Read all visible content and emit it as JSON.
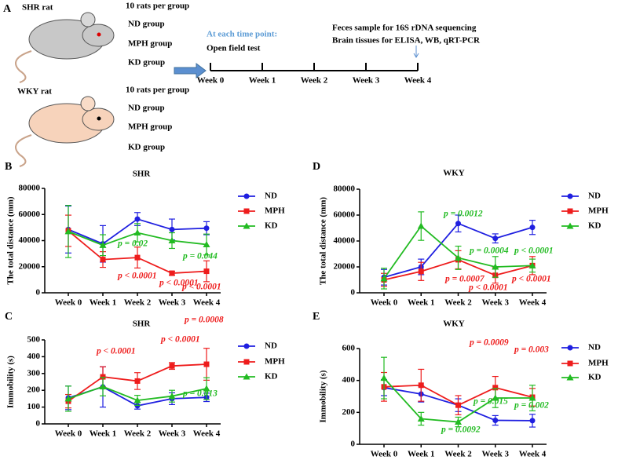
{
  "diagram": {
    "panel": "A",
    "groups": [
      {
        "rat": "SHR rat",
        "count": "10 rats per group",
        "items": [
          "ND group",
          "MPH group",
          "KD group"
        ]
      },
      {
        "rat": "WKY rat",
        "count": "10 rats per group",
        "items": [
          "ND group",
          "MPH group",
          "KD group"
        ]
      }
    ],
    "timepoint": "At each time point:",
    "test": "Open field test",
    "final": [
      "Feces sample for 16S rDNA sequencing",
      "Brain tissues for ELISA, WB, qRT-PCR"
    ],
    "weeks": [
      "Week 0",
      "Week 1",
      "Week 2",
      "Week 3",
      "Week 4"
    ]
  },
  "chart_data": [
    {
      "type": "line",
      "panel": "B",
      "title": "SHR",
      "ylabel": "The total distance (mm)",
      "categories": [
        "Week 0",
        "Week 1",
        "Week 2",
        "Week 3",
        "Week 4"
      ],
      "ylim": [
        0,
        80000
      ],
      "yticks": [
        0,
        20000,
        40000,
        60000,
        80000
      ],
      "series": [
        {
          "name": "ND",
          "color": "#1f1fe0",
          "marker": "circle",
          "values": [
            48500,
            37500,
            56500,
            48500,
            49500
          ],
          "errors": [
            18000,
            14000,
            5000,
            8000,
            5000
          ]
        },
        {
          "name": "MPH",
          "color": "#ee1c1c",
          "marker": "square",
          "values": [
            47500,
            25500,
            27000,
            15000,
            16500
          ],
          "errors": [
            12000,
            6000,
            8000,
            1500,
            8000
          ]
        },
        {
          "name": "KD",
          "color": "#22bb22",
          "marker": "triangle",
          "values": [
            47000,
            36500,
            46000,
            40000,
            37000
          ],
          "errors": [
            20000,
            8000,
            7000,
            6000,
            8000
          ]
        }
      ],
      "annotations": [
        {
          "text": "p = 0.02",
          "color": "#22bb22"
        },
        {
          "text": "p < 0.0001",
          "color": "#ee1c1c"
        },
        {
          "text": "p < 0.0001",
          "color": "#ee1c1c"
        },
        {
          "text": "p < 0.0001",
          "color": "#ee1c1c"
        },
        {
          "text": "p = 0.044",
          "color": "#22bb22"
        }
      ]
    },
    {
      "type": "line",
      "panel": "C",
      "title": "SHR",
      "ylabel": "Immobility (s)",
      "categories": [
        "Week 0",
        "Week 1",
        "Week 2",
        "Week 3",
        "Week 4"
      ],
      "ylim": [
        0,
        500
      ],
      "yticks": [
        0,
        100,
        200,
        300,
        400,
        500
      ],
      "series": [
        {
          "name": "ND",
          "color": "#1f1fe0",
          "marker": "circle",
          "values": [
            155,
            220,
            108,
            150,
            158
          ],
          "errors": [
            70,
            120,
            20,
            35,
            25
          ]
        },
        {
          "name": "MPH",
          "color": "#ee1c1c",
          "marker": "square",
          "values": [
            135,
            280,
            255,
            345,
            355
          ],
          "errors": [
            40,
            60,
            50,
            20,
            95
          ]
        },
        {
          "name": "KD",
          "color": "#22bb22",
          "marker": "triangle",
          "values": [
            150,
            222,
            140,
            165,
            210
          ],
          "errors": [
            75,
            55,
            30,
            35,
            65
          ]
        }
      ],
      "annotations": [
        {
          "text": "p < 0.0001",
          "color": "#ee1c1c"
        },
        {
          "text": "p < 0.0001",
          "color": "#ee1c1c"
        },
        {
          "text": "p = 0.0008",
          "color": "#ee1c1c"
        },
        {
          "text": "p = 0.013",
          "color": "#22bb22"
        }
      ]
    },
    {
      "type": "line",
      "panel": "D",
      "title": "WKY",
      "ylabel": "The total distance (mm)",
      "categories": [
        "Week 0",
        "Week 1",
        "Week 2",
        "Week 3",
        "Week 4"
      ],
      "ylim": [
        0,
        80000
      ],
      "yticks": [
        0,
        20000,
        40000,
        60000,
        80000
      ],
      "series": [
        {
          "name": "ND",
          "color": "#1f1fe0",
          "marker": "circle",
          "values": [
            12000,
            20000,
            53500,
            42000,
            50500
          ],
          "errors": [
            6000,
            6000,
            6500,
            3500,
            5500
          ]
        },
        {
          "name": "MPH",
          "color": "#ee1c1c",
          "marker": "square",
          "values": [
            10000,
            16500,
            25500,
            13500,
            21000
          ],
          "errors": [
            5000,
            7000,
            7000,
            6000,
            7000
          ]
        },
        {
          "name": "KD",
          "color": "#22bb22",
          "marker": "triangle",
          "values": [
            11000,
            51500,
            27000,
            20000,
            21000
          ],
          "errors": [
            8000,
            11000,
            9000,
            8000,
            5000
          ]
        }
      ],
      "annotations": [
        {
          "text": "p = 0.0012",
          "color": "#22bb22"
        },
        {
          "text": "p = 0.0004",
          "color": "#22bb22"
        },
        {
          "text": "p < 0.0001",
          "color": "#22bb22"
        },
        {
          "text": "p = 0.0007",
          "color": "#ee1c1c"
        },
        {
          "text": "p < 0.0001",
          "color": "#ee1c1c"
        },
        {
          "text": "p < 0.0001",
          "color": "#ee1c1c"
        }
      ]
    },
    {
      "type": "line",
      "panel": "E",
      "title": "WKY",
      "ylabel": "Immobility (s)",
      "categories": [
        "Week 0",
        "Week 1",
        "Week 2",
        "Week 3",
        "Week 4"
      ],
      "ylim": [
        0,
        600
      ],
      "yticks": [
        0,
        200,
        400,
        600
      ],
      "series": [
        {
          "name": "ND",
          "color": "#1f1fe0",
          "marker": "circle",
          "values": [
            355,
            315,
            245,
            150,
            148
          ],
          "errors": [
            50,
            50,
            40,
            30,
            40
          ]
        },
        {
          "name": "MPH",
          "color": "#ee1c1c",
          "marker": "square",
          "values": [
            360,
            370,
            245,
            355,
            295
          ],
          "errors": [
            90,
            100,
            60,
            70,
            55
          ]
        },
        {
          "name": "KD",
          "color": "#22bb22",
          "marker": "triangle",
          "values": [
            415,
            160,
            140,
            290,
            290
          ],
          "errors": [
            130,
            40,
            30,
            60,
            80
          ]
        }
      ],
      "annotations": [
        {
          "text": "p = 0.0009",
          "color": "#ee1c1c"
        },
        {
          "text": "p = 0.003",
          "color": "#ee1c1c"
        },
        {
          "text": "p = 0.015",
          "color": "#22bb22"
        },
        {
          "text": "p = 0.002",
          "color": "#22bb22"
        },
        {
          "text": "p = 0.0092",
          "color": "#22bb22"
        }
      ]
    }
  ]
}
